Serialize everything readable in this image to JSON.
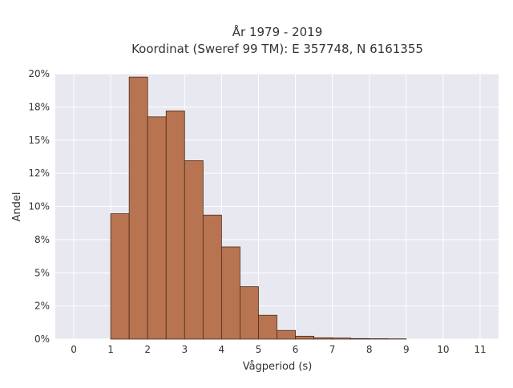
{
  "chart_data": {
    "type": "bar",
    "title_line1": "År 1979 - 2019",
    "title_line2": "Koordinat (Sweref 99 TM): E 357748, N 6161355",
    "xlabel": "Vågperiod (s)",
    "ylabel": "Andel",
    "x_ticks": [
      "0",
      "1",
      "2",
      "3",
      "4",
      "5",
      "6",
      "7",
      "8",
      "9",
      "10",
      "11"
    ],
    "y_ticks": [
      "0%",
      "2%",
      "5%",
      "8%",
      "10%",
      "12%",
      "15%",
      "18%",
      "20%"
    ],
    "y_tick_values": [
      0,
      0.025,
      0.05,
      0.075,
      0.1,
      0.125,
      0.15,
      0.175,
      0.2
    ],
    "xlim": [
      -0.5,
      11.5
    ],
    "ylim": [
      0,
      0.2
    ],
    "grid": true,
    "bin_width": 0.5,
    "bins": [
      {
        "x_start": 1.0,
        "value": 0.0945
      },
      {
        "x_start": 1.5,
        "value": 0.1975
      },
      {
        "x_start": 2.0,
        "value": 0.1675
      },
      {
        "x_start": 2.5,
        "value": 0.172
      },
      {
        "x_start": 3.0,
        "value": 0.1345
      },
      {
        "x_start": 3.5,
        "value": 0.0935
      },
      {
        "x_start": 4.0,
        "value": 0.0695
      },
      {
        "x_start": 4.5,
        "value": 0.0395
      },
      {
        "x_start": 5.0,
        "value": 0.018
      },
      {
        "x_start": 5.5,
        "value": 0.0065
      },
      {
        "x_start": 6.0,
        "value": 0.0022
      },
      {
        "x_start": 6.5,
        "value": 0.001
      },
      {
        "x_start": 7.0,
        "value": 0.0008
      },
      {
        "x_start": 7.5,
        "value": 0.0004
      },
      {
        "x_start": 8.0,
        "value": 0.0003
      },
      {
        "x_start": 8.5,
        "value": 0.0002
      }
    ],
    "colors": {
      "bar_fill": "#b87450",
      "bar_stroke": "#4a2a1a",
      "plot_bg": "#e8e8f0",
      "grid": "#ffffff"
    }
  }
}
